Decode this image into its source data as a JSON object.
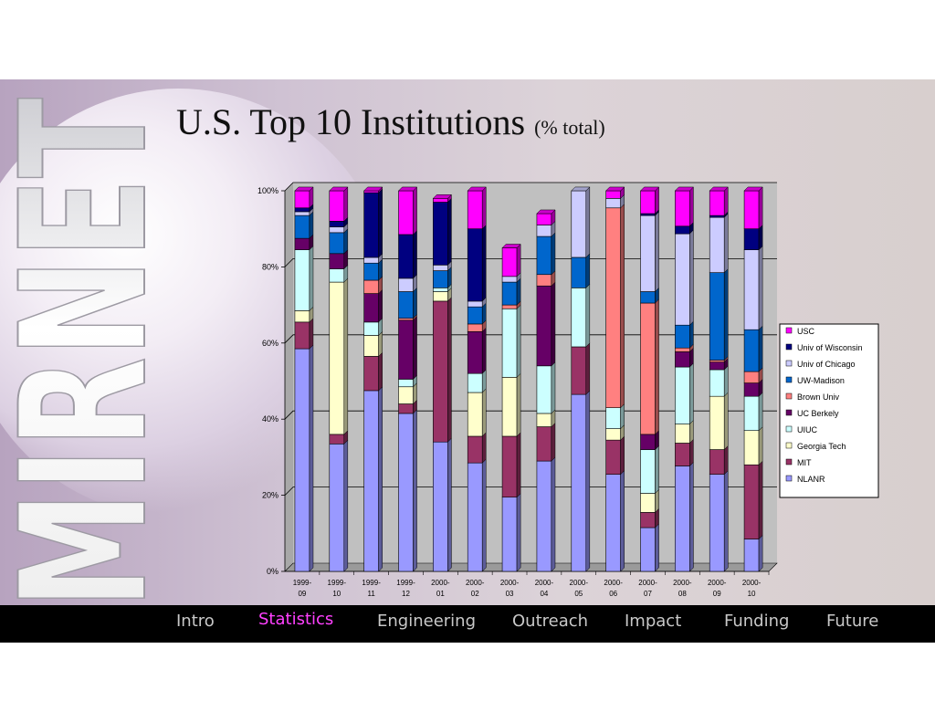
{
  "slide": {
    "title": "U.S. Top 10 Institutions",
    "title_suffix": "(% total)",
    "logo_text": "MIRNET"
  },
  "nav": {
    "items": [
      {
        "label": "Intro",
        "active": false
      },
      {
        "label": "Statistics",
        "active": true
      },
      {
        "label": "Engineering",
        "active": false
      },
      {
        "label": "Outreach",
        "active": false
      },
      {
        "label": "Impact",
        "active": false
      },
      {
        "label": "Funding",
        "active": false
      },
      {
        "label": "Future",
        "active": false
      }
    ],
    "active_color": "#ff40ff",
    "color": "#c8c8c8"
  },
  "chart_data": {
    "type": "bar",
    "stacked": true,
    "percent": true,
    "title": "",
    "xlabel": "",
    "ylabel": "",
    "ylim": [
      0,
      100
    ],
    "yticks": [
      "0%",
      "20%",
      "40%",
      "60%",
      "80%",
      "100%"
    ],
    "grid": true,
    "legend_position": "right",
    "categories": [
      [
        "1999-",
        "09"
      ],
      [
        "1999-",
        "10"
      ],
      [
        "1999-",
        "11"
      ],
      [
        "1999-",
        "12"
      ],
      [
        "2000-",
        "01"
      ],
      [
        "2000-",
        "02"
      ],
      [
        "2000-",
        "03"
      ],
      [
        "2000-",
        "04"
      ],
      [
        "2000-",
        "05"
      ],
      [
        "2000-",
        "06"
      ],
      [
        "2000-",
        "07"
      ],
      [
        "2000-",
        "08"
      ],
      [
        "2000-",
        "09"
      ],
      [
        "2000-",
        "10"
      ]
    ],
    "series": [
      {
        "name": "NLANR",
        "color": "#9999ff",
        "values": [
          58.5,
          33.5,
          47.5,
          41.5,
          34,
          28.5,
          19.5,
          29,
          46.5,
          25.5,
          11.5,
          27.7,
          25.5,
          8.5
        ]
      },
      {
        "name": "MIT",
        "color": "#993366",
        "values": [
          7,
          2.5,
          9,
          2.5,
          37,
          7,
          16,
          9,
          12.5,
          9,
          4,
          6,
          6.5,
          19.5
        ]
      },
      {
        "name": "Georgia Tech",
        "color": "#ffffcc",
        "values": [
          3,
          40,
          5.5,
          4.5,
          2.5,
          11.5,
          15.5,
          3.5,
          0,
          3,
          5,
          5,
          14,
          9
        ]
      },
      {
        "name": "UIUC",
        "color": "#ccffff",
        "values": [
          16,
          3.5,
          3.5,
          2,
          1,
          5,
          18,
          12.5,
          15.5,
          5.5,
          11.5,
          15,
          7,
          9
        ]
      },
      {
        "name": "UC Berkely",
        "color": "#660066",
        "values": [
          3,
          4,
          7.5,
          15.5,
          0,
          11,
          0,
          21,
          0,
          0,
          4,
          4,
          2,
          3.5
        ]
      },
      {
        "name": "Brown Univ",
        "color": "#ff8080",
        "values": [
          0,
          0,
          3.5,
          0.5,
          0,
          2,
          1,
          3,
          0,
          52.5,
          34.5,
          1,
          0.5,
          3
        ]
      },
      {
        "name": "UW-Madison",
        "color": "#0066cc",
        "values": [
          6,
          5.5,
          4.5,
          7,
          4.5,
          4.5,
          6,
          10,
          8,
          0,
          3,
          6,
          23,
          11
        ]
      },
      {
        "name": "Univ of Chicago",
        "color": "#ccccff",
        "values": [
          1,
          1.5,
          1.5,
          3.5,
          1.5,
          1.5,
          1.5,
          3,
          17.5,
          2.5,
          20,
          24,
          14.5,
          21
        ]
      },
      {
        "name": "Univ of Wisconsin",
        "color": "#000080",
        "values": [
          1,
          1.5,
          17,
          11.5,
          16.5,
          19,
          0,
          0,
          0,
          0,
          0.5,
          2,
          0.5,
          5.5
        ]
      },
      {
        "name": "USC",
        "color": "#ff00ff",
        "values": [
          4.5,
          8,
          0.5,
          11.5,
          1,
          10,
          7.5,
          3,
          0,
          2,
          6,
          9.3,
          6.5,
          10
        ]
      }
    ]
  }
}
